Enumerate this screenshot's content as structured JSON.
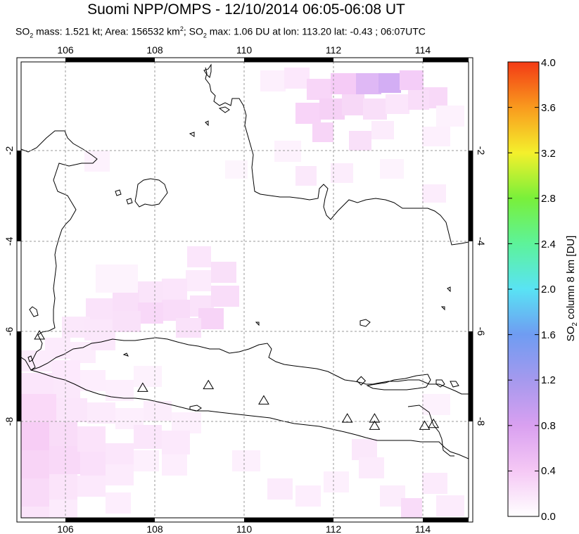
{
  "header": {
    "title": "Suomi NPP/OMPS - 12/10/2014 06:05-06:08 UT",
    "subtitle": {
      "mass_prefix": "SO",
      "mass_sub": "2",
      "mass_text": " mass: 1.521 kt; Area: 156532 km",
      "area_sup": "2",
      "max_prefix": "; SO",
      "max_sub": "2",
      "max_text": " max: 1.06 DU at lon: 113.20 lat: -0.43 ; 06:07UTC"
    }
  },
  "map": {
    "lon_range": [
      105,
      115
    ],
    "lat_range": [
      -10,
      -0.1
    ],
    "lon_ticks": [
      "106",
      "108",
      "110",
      "112",
      "114"
    ],
    "lat_ticks": [
      "-2",
      "-4",
      "-6",
      "-8"
    ],
    "volcano_marker": "triangle-icon",
    "volcanoes": [
      {
        "lon": 105.42,
        "lat": -6.1
      },
      {
        "lon": 107.73,
        "lat": -7.26
      },
      {
        "lon": 109.2,
        "lat": -7.2
      },
      {
        "lon": 110.44,
        "lat": -7.54
      },
      {
        "lon": 112.31,
        "lat": -7.94
      },
      {
        "lon": 112.92,
        "lat": -7.94
      },
      {
        "lon": 112.92,
        "lat": -8.1
      },
      {
        "lon": 114.04,
        "lat": -8.1
      },
      {
        "lon": 114.24,
        "lat": -8.06
      },
      {
        "lon": 112.62,
        "lat": -7.1
      }
    ]
  },
  "colorbar": {
    "label_prefix": "SO",
    "label_sub": "2",
    "label_suffix": " column 8 km [DU]",
    "ticks": [
      "4.0",
      "3.6",
      "3.2",
      "2.8",
      "2.4",
      "2.0",
      "1.6",
      "1.2",
      "0.8",
      "0.4",
      "0.0"
    ],
    "colors": [
      "#ffffff",
      "#f5c8f5",
      "#d9a0f0",
      "#a599ee",
      "#6f9cf2",
      "#59e3f4",
      "#5df39a",
      "#79f03a",
      "#f4f02c",
      "#f99a1e",
      "#f33a15"
    ]
  }
}
